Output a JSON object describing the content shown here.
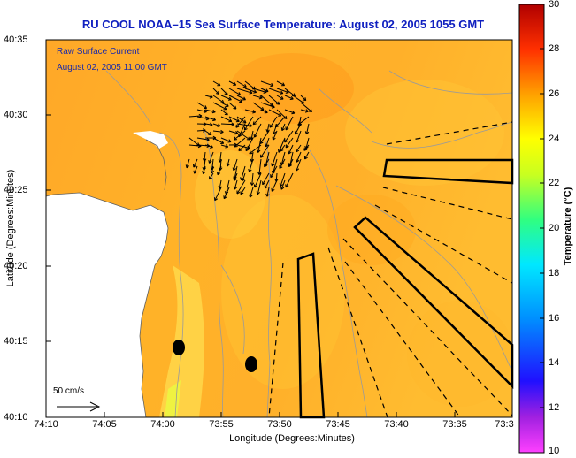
{
  "title": "RU COOL  NOAA–15  Sea Surface Temperature:  August 02, 2005 1055 GMT",
  "legend": {
    "line1": "Raw Surface Current",
    "line2": "August 02, 2005 11:00 GMT"
  },
  "scale_label": "50 cm/s",
  "axes": {
    "xlabel": "Longitude (Degrees:Minutes)",
    "ylabel": "Latitude (Degrees:Minutes)",
    "xticks": [
      "74:10",
      "74:05",
      "74:00",
      "73:55",
      "73:50",
      "73:45",
      "73:40",
      "73:35",
      "73:3"
    ],
    "yticks": [
      "40:35",
      "40:30",
      "40:25",
      "40:20",
      "40:15",
      "40:10"
    ]
  },
  "colorbar": {
    "label": "Temperature (°C)",
    "ticks": [
      "30",
      "28",
      "26",
      "24",
      "22",
      "20",
      "18",
      "16",
      "14",
      "12",
      "10"
    ],
    "range": [
      10,
      30
    ],
    "colors": [
      "#e000e0",
      "#7030c0",
      "#0010ff",
      "#0080ff",
      "#00e0ff",
      "#40ff80",
      "#c0ff30",
      "#ffff00",
      "#ffa000",
      "#ff4000",
      "#c00000"
    ]
  },
  "map_colors": {
    "ocean_warm": "#ffc020",
    "ocean_mid": "#ffa020",
    "ocean_cool": "#ffd84a",
    "land": "#ffffff",
    "contour": "#9a9a9a"
  }
}
